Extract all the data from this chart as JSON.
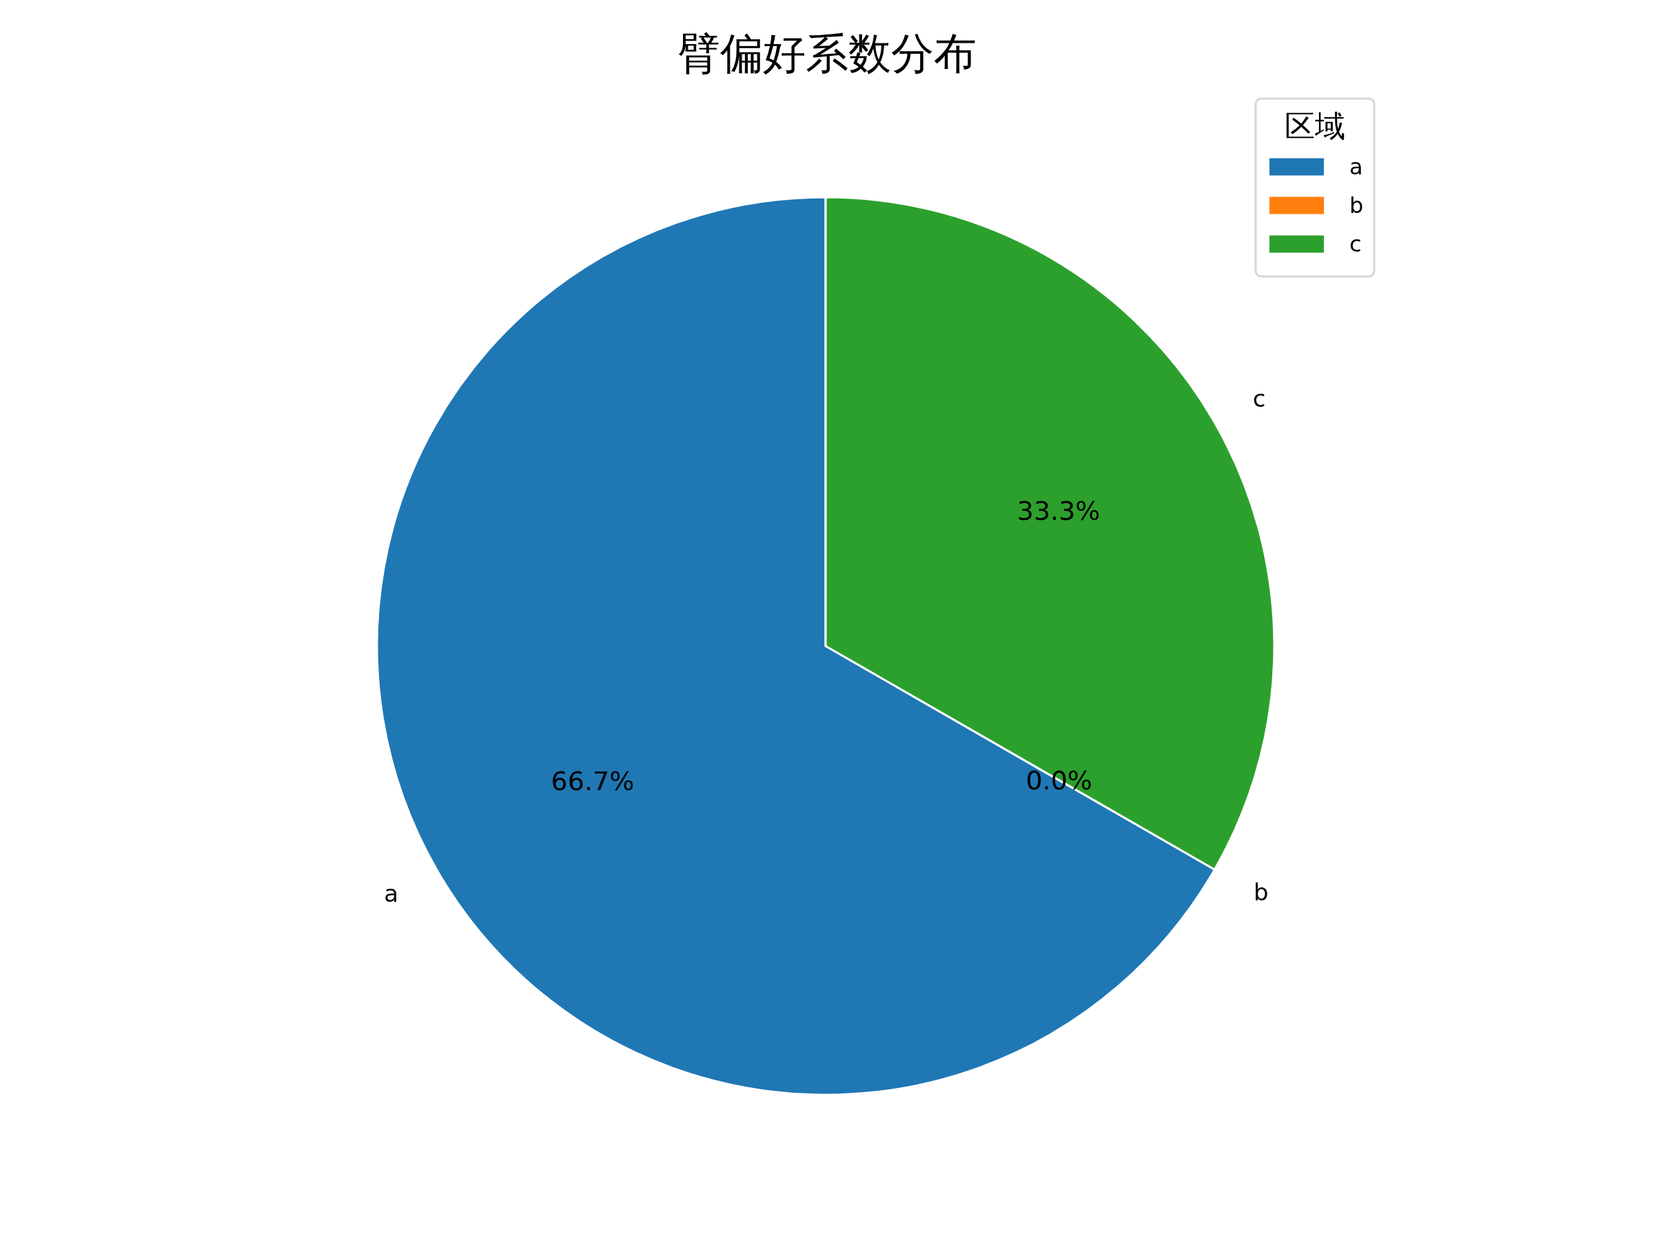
{
  "chart_data": {
    "type": "pie",
    "title": "臂偏好系数分布",
    "legend_title": "区域",
    "categories": [
      "a",
      "b",
      "c"
    ],
    "values": [
      66.7,
      0.0,
      33.3
    ],
    "colors": [
      "#1f77b4",
      "#ff7f0e",
      "#2ca02c"
    ],
    "value_labels": [
      "66.7%",
      "0.0%",
      "33.3%"
    ],
    "legend": "top right"
  }
}
